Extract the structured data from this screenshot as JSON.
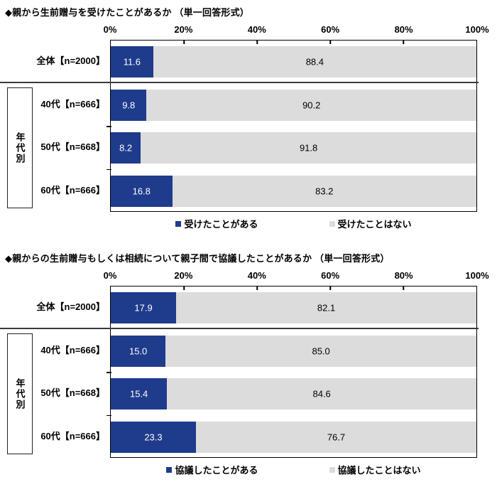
{
  "colors": {
    "bar_yes": "#1F3B8C",
    "bar_no": "#DCDCDC",
    "plot_border": "#000000",
    "separator_line": "#3A3A3A",
    "value_label_on_yes": "#FFFFFF",
    "value_label_on_no": "#000000"
  },
  "chart_data": [
    {
      "type": "bar",
      "orientation": "horizontal",
      "stacked": true,
      "title": "◆親から生前贈与を受けたことがあるか （単一回答形式）",
      "categories": [
        "全体【n=2000】",
        "40代【n=666】",
        "50代【n=668】",
        "60代【n=666】"
      ],
      "group_label": "年代別",
      "series": [
        {
          "name": "受けたことがある",
          "color": "#1F3B8C",
          "values": [
            11.6,
            9.8,
            8.2,
            16.8
          ]
        },
        {
          "name": "受けたことはない",
          "color": "#DCDCDC",
          "values": [
            88.4,
            90.2,
            91.8,
            83.2
          ]
        }
      ],
      "xlim": [
        0,
        100
      ],
      "x_ticks": [
        "0%",
        "20%",
        "40%",
        "60%",
        "80%",
        "100%"
      ],
      "legend_position": "bottom",
      "value_label_decimals": 1,
      "grid": false
    },
    {
      "type": "bar",
      "orientation": "horizontal",
      "stacked": true,
      "title": "◆親からの生前贈与もしくは相続について親子間で協議したことがあるか （単一回答形式）",
      "categories": [
        "全体【n=2000】",
        "40代【n=666】",
        "50代【n=668】",
        "60代【n=666】"
      ],
      "group_label": "年代別",
      "series": [
        {
          "name": "協議したことがある",
          "color": "#1F3B8C",
          "values": [
            17.9,
            15.0,
            15.4,
            23.3
          ]
        },
        {
          "name": "協議したことはない",
          "color": "#DCDCDC",
          "values": [
            82.1,
            85.0,
            84.6,
            76.7
          ]
        }
      ],
      "xlim": [
        0,
        100
      ],
      "x_ticks": [
        "0%",
        "20%",
        "40%",
        "60%",
        "80%",
        "100%"
      ],
      "legend_position": "bottom",
      "value_label_decimals": 1,
      "grid": false
    }
  ]
}
